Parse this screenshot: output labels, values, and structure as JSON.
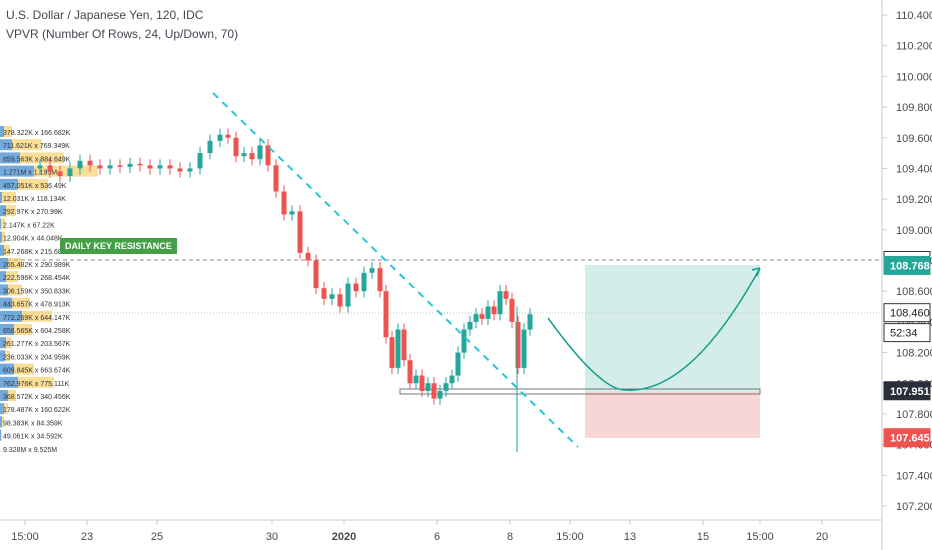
{
  "header": {
    "title": "U.S. Dollar / Japanese Yen, 120, IDC",
    "subtitle": "VPVR (Number Of Rows, 24, Up/Down, 70)"
  },
  "annotation": {
    "daily_key_resistance": "DAILY KEY RESISTANCE"
  },
  "colors": {
    "up_candle": "#26a69a",
    "down_candle": "#ef5350",
    "vol_up": "#5b9bd5",
    "vol_down": "#f5c242",
    "target_zone": "#d4ede9",
    "stop_zone": "#f9d6d6",
    "trendline": "#26c6da",
    "price_red": "#ef5350",
    "price_green": "#26a69a"
  },
  "price_axis": {
    "ticks": [
      "110.400",
      "110.200",
      "110.000",
      "109.800",
      "109.600",
      "109.400",
      "109.200",
      "109.000",
      "108.800",
      "108.600",
      "108.400",
      "108.200",
      "108.000",
      "107.800",
      "107.600",
      "107.400",
      "107.200"
    ],
    "badges": [
      {
        "label": "108.800",
        "value": 108.8,
        "style": "outline"
      },
      {
        "label": "108.768",
        "value": 108.768,
        "style": "green"
      },
      {
        "label": "108.460",
        "value": 108.46,
        "style": "outline"
      },
      {
        "label": "52:34",
        "value": 108.33,
        "style": "outline"
      },
      {
        "label": "107.951",
        "value": 107.951,
        "style": "dark"
      },
      {
        "label": "107.645",
        "value": 107.645,
        "style": "red"
      }
    ]
  },
  "time_axis": {
    "labels": [
      "15:00",
      "23",
      "25",
      "30",
      "2020",
      "6",
      "8",
      "15:00",
      "13",
      "15",
      "15:00",
      "20"
    ]
  },
  "volume_profile": {
    "labels": [
      "378.322K x 166.682K",
      "711.621K x 769.349K",
      "859.563K x 884.649K",
      "1.271M x 1.195M",
      "457.051K x 536.49K",
      "12.031K x 118.134K",
      "292.97K x 270.99K",
      "2.147K x 67.22K",
      "12.904K x 44.048K",
      "147.268K x 215.684K",
      "265.482K x 290.989K",
      "222.596K x 268.454K",
      "306.159K x 350.833K",
      "443.657K x 478.913K",
      "772.269K x 644.147K",
      "656.565K x 604.258K",
      "261.277K x 203.567K",
      "236.033K x 204.959K",
      "609.845K x 663.674K",
      "762.976K x 775.111K",
      "368.572K x 340.456K",
      "178.487K x 160.622K",
      "98.383K x 84.359K",
      "49.061K x 34.592K",
      "9.328M x 9.525M"
    ]
  },
  "chart_data": {
    "type": "candlestick",
    "symbol": "USDJPY",
    "ylim": [
      107.1,
      110.5
    ],
    "support_level": 107.951,
    "resistance_level": 108.8,
    "target_level": 108.768,
    "stop_level": 107.645,
    "last_price": 108.46
  }
}
